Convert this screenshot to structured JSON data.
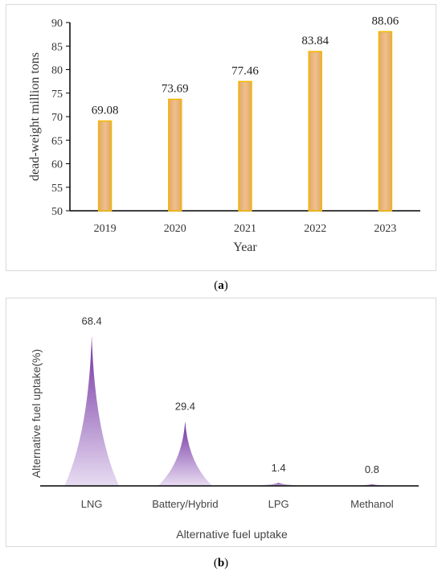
{
  "chart_data": [
    {
      "type": "bar",
      "categories": [
        "2019",
        "2020",
        "2021",
        "2022",
        "2023"
      ],
      "values": [
        69.08,
        73.69,
        77.46,
        83.84,
        88.06
      ],
      "data_labels": [
        "69.08",
        "73.69",
        "77.46",
        "83.84",
        "88.06"
      ],
      "xlabel": "Year",
      "ylabel": "dead-weight million tons",
      "ylim": [
        50,
        90
      ],
      "yticks": [
        "50",
        "55",
        "60",
        "65",
        "70",
        "75",
        "80",
        "85",
        "90"
      ],
      "grid": false,
      "colors": {
        "fill": "#e8b87c",
        "stroke": "#f5b800"
      }
    },
    {
      "type": "bar",
      "categories": [
        "LNG",
        "Battery/Hybrid",
        "LPG",
        "Methanol"
      ],
      "values": [
        68.4,
        29.4,
        1.4,
        0.8
      ],
      "data_labels": [
        "68.4",
        "29.4",
        "1.4",
        "0.8"
      ],
      "xlabel": "Alternative fuel uptake",
      "ylabel": "Alternative fuel uptake(%)",
      "ylim": [
        0,
        70
      ],
      "grid": false,
      "shape": "cone",
      "colors": {
        "fill_top": "#7030a0",
        "fill_bottom": "#e8dcf2"
      }
    }
  ],
  "captions": {
    "a": "a",
    "b": "b"
  }
}
